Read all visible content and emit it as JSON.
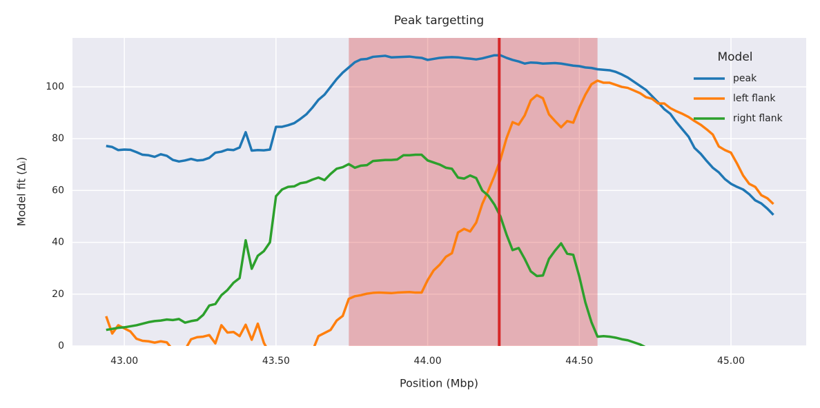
{
  "chart_data": {
    "type": "line",
    "title": "Peak targetting",
    "x_label": "Position (Mbp)",
    "y_label": "Model fit (Δᵢ)",
    "x": [
      42.94,
      42.96,
      42.98,
      43.0,
      43.02,
      43.04,
      43.06,
      43.08,
      43.1,
      43.12,
      43.14,
      43.16,
      43.18,
      43.2,
      43.22,
      43.24,
      43.26,
      43.28,
      43.3,
      43.32,
      43.34,
      43.36,
      43.38,
      43.4,
      43.42,
      43.44,
      43.46,
      43.48,
      43.5,
      43.52,
      43.54,
      43.56,
      43.58,
      43.6,
      43.62,
      43.64,
      43.66,
      43.68,
      43.7,
      43.72,
      43.74,
      43.76,
      43.78,
      43.8,
      43.82,
      43.84,
      43.86,
      43.88,
      43.9,
      43.92,
      43.94,
      43.96,
      43.98,
      44.0,
      44.02,
      44.04,
      44.06,
      44.08,
      44.1,
      44.12,
      44.14,
      44.16,
      44.18,
      44.2,
      44.22,
      44.24,
      44.26,
      44.28,
      44.3,
      44.32,
      44.34,
      44.36,
      44.38,
      44.4,
      44.42,
      44.44,
      44.46,
      44.48,
      44.5,
      44.52,
      44.54,
      44.56,
      44.58,
      44.6,
      44.62,
      44.64,
      44.66,
      44.68,
      44.7,
      44.72,
      44.74,
      44.76,
      44.78,
      44.8,
      44.82,
      44.84,
      44.86,
      44.88,
      44.9,
      44.92,
      44.94,
      44.96,
      44.98,
      45.0,
      45.02,
      45.04,
      45.06,
      45.08,
      45.1,
      45.12,
      45.14
    ],
    "series": [
      {
        "name": "peak",
        "color": "#1f77b4",
        "values": [
          77.2,
          76.8,
          75.6,
          75.8,
          75.7,
          74.8,
          73.8,
          73.6,
          73.0,
          74.0,
          73.4,
          71.8,
          71.2,
          71.6,
          72.2,
          71.6,
          71.8,
          72.6,
          74.6,
          75.0,
          75.8,
          75.6,
          76.6,
          82.5,
          75.4,
          75.6,
          75.5,
          75.8,
          84.6,
          84.6,
          85.2,
          86.0,
          87.6,
          89.4,
          92.0,
          95.0,
          97.0,
          100.0,
          103.0,
          105.5,
          107.5,
          109.5,
          110.6,
          110.8,
          111.6,
          111.8,
          112.0,
          111.4,
          111.5,
          111.6,
          111.7,
          111.4,
          111.2,
          110.4,
          110.8,
          111.2,
          111.4,
          111.5,
          111.4,
          111.1,
          110.9,
          110.6,
          111.0,
          111.6,
          112.2,
          112.2,
          111.2,
          110.4,
          109.8,
          109.0,
          109.4,
          109.3,
          109.0,
          109.1,
          109.2,
          109.0,
          108.6,
          108.2,
          108.0,
          107.5,
          107.3,
          106.8,
          106.6,
          106.4,
          105.8,
          104.8,
          103.6,
          102.0,
          100.4,
          98.8,
          96.4,
          94.0,
          91.4,
          89.6,
          86.4,
          83.6,
          80.8,
          76.4,
          74.2,
          71.4,
          68.8,
          67.0,
          64.4,
          62.6,
          61.4,
          60.4,
          58.6,
          56.2,
          55.0,
          53.0,
          50.6
        ]
      },
      {
        "name": "left flank",
        "color": "#ff7f0e",
        "values": [
          11.5,
          4.8,
          8.0,
          6.8,
          5.6,
          2.8,
          2.0,
          1.8,
          1.3,
          1.8,
          1.4,
          -1.5,
          -1.0,
          -1.5,
          2.6,
          3.4,
          3.6,
          4.2,
          1.0,
          8.0,
          5.2,
          5.4,
          3.8,
          8.2,
          2.4,
          8.6,
          1.2,
          -3,
          null,
          null,
          null,
          null,
          null,
          null,
          -2,
          3.8,
          5.0,
          6.2,
          9.8,
          11.6,
          18.2,
          19.2,
          19.6,
          20.2,
          20.5,
          20.6,
          20.5,
          20.4,
          20.6,
          20.7,
          20.8,
          20.6,
          20.6,
          25.4,
          29.2,
          31.4,
          34.4,
          35.8,
          43.8,
          45.2,
          44.2,
          47.6,
          54.8,
          60.0,
          65.6,
          72.0,
          80.2,
          86.4,
          85.4,
          89.0,
          94.8,
          96.8,
          95.6,
          89.4,
          86.8,
          84.4,
          86.8,
          86.2,
          92.0,
          97.0,
          101.0,
          102.4,
          101.6,
          101.6,
          100.8,
          100.0,
          99.6,
          98.6,
          97.6,
          96.0,
          95.4,
          93.6,
          93.6,
          91.8,
          90.6,
          89.6,
          88.4,
          86.8,
          85.4,
          83.6,
          81.6,
          77.0,
          75.6,
          74.6,
          70.4,
          65.8,
          62.6,
          61.4,
          58.2,
          57.0,
          54.8
        ]
      },
      {
        "name": "right flank",
        "color": "#2ca02c",
        "values": [
          6.2,
          6.6,
          7.0,
          7.2,
          7.6,
          8.0,
          8.6,
          9.2,
          9.6,
          9.8,
          10.2,
          10.0,
          10.4,
          9.0,
          9.6,
          10.0,
          12.0,
          15.6,
          16.2,
          19.6,
          21.6,
          24.4,
          26.2,
          40.8,
          29.8,
          34.8,
          36.6,
          40.0,
          57.8,
          60.4,
          61.4,
          61.6,
          62.8,
          63.2,
          64.2,
          65.0,
          64.0,
          66.4,
          68.4,
          69.0,
          70.2,
          68.8,
          69.6,
          69.8,
          71.4,
          71.6,
          71.8,
          71.8,
          72.0,
          73.6,
          73.6,
          73.8,
          73.8,
          71.6,
          70.8,
          70.0,
          68.8,
          68.4,
          65.0,
          64.6,
          65.8,
          64.8,
          60.0,
          58.0,
          54.6,
          50.0,
          43.0,
          37.0,
          37.8,
          33.6,
          28.8,
          27.0,
          27.2,
          33.6,
          36.8,
          39.6,
          35.6,
          35.2,
          26.8,
          16.8,
          9.2,
          3.6,
          3.8,
          3.6,
          3.2,
          2.6,
          2.2,
          1.4,
          0.6,
          -0.6,
          -2,
          null,
          null,
          null,
          null,
          null,
          null,
          null,
          null,
          null,
          null,
          null,
          null,
          null,
          null,
          null,
          null,
          null,
          null,
          null,
          null
        ]
      }
    ],
    "span": [
      43.74,
      44.56
    ],
    "span_color": "#d62728",
    "vline": 44.236,
    "vline_color": "#d62728",
    "xlim": [
      42.829,
      45.248
    ],
    "ylim": [
      0,
      118.9
    ],
    "xticks": [
      {
        "value": 43,
        "label": "43.00"
      },
      {
        "value": 43.5,
        "label": "43.50"
      },
      {
        "value": 44,
        "label": "44.00"
      },
      {
        "value": 44.5,
        "label": "44.50"
      },
      {
        "value": 45,
        "label": "45.00"
      }
    ],
    "yticks": [
      0,
      20,
      40,
      60,
      80,
      100
    ],
    "grid": true,
    "legend_title": "Model",
    "legend_position": "upper right"
  }
}
